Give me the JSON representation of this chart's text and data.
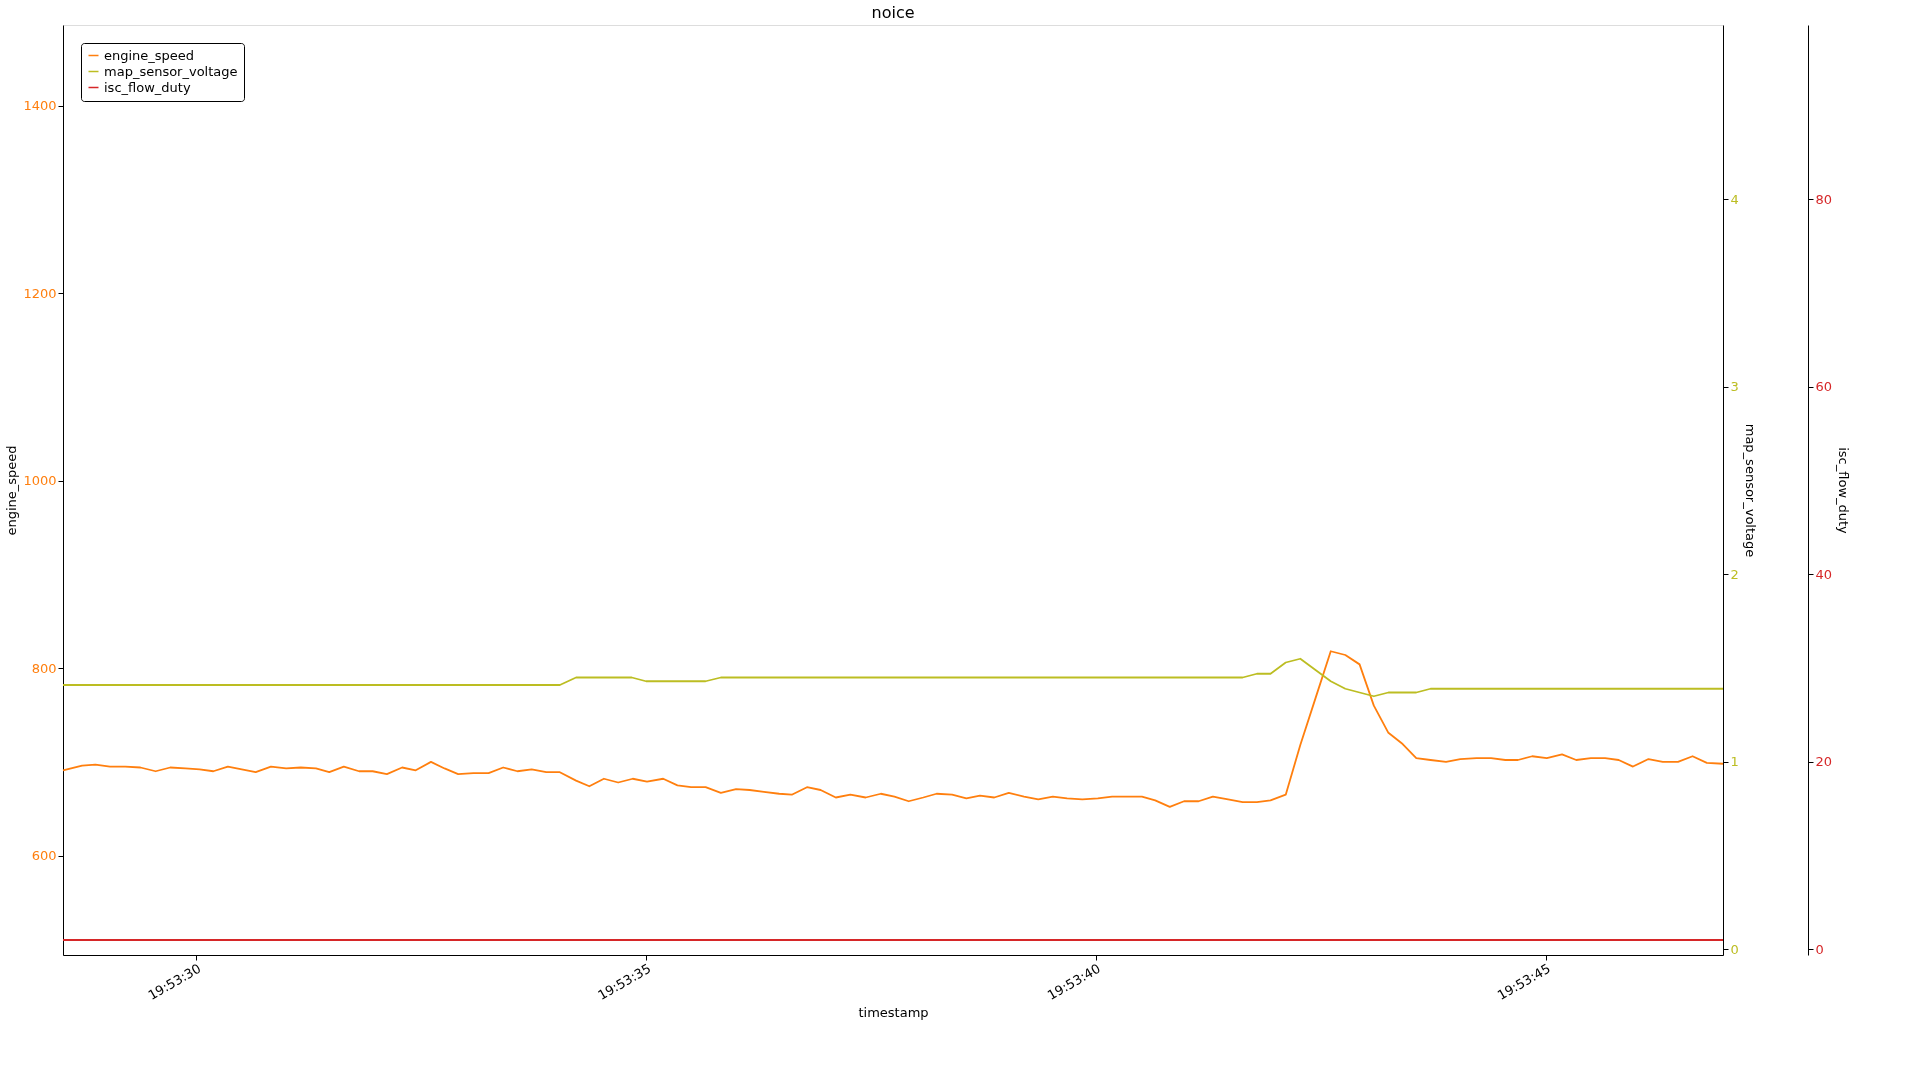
{
  "chart_data": {
    "type": "line",
    "title": "noice",
    "xlabel": "timestamp",
    "ylabel": "engine_speed",
    "y2label": "map_sensor_voltage",
    "y3label": "isc_flow_duty",
    "xlim": [
      19.891255,
      19.89638
    ],
    "xticks": [
      {
        "value": 19.891667,
        "label": "19:53:30"
      },
      {
        "value": 19.893056,
        "label": "19:53:35"
      },
      {
        "value": 19.894444,
        "label": "19:53:40"
      },
      {
        "value": 19.895833,
        "label": "19:53:45"
      }
    ],
    "ylim": [
      494,
      1486
    ],
    "yticks": [
      600,
      800,
      1000,
      1200,
      1400
    ],
    "y2lim": [
      -0.03,
      4.93
    ],
    "y2ticks": [
      0,
      1,
      2,
      3,
      4
    ],
    "y3lim": [
      -0.6,
      98.6
    ],
    "y3ticks": [
      0,
      20,
      40,
      60,
      80
    ],
    "legend": "top left",
    "grid": false,
    "line_style": "solid",
    "marker": "none",
    "series": [
      {
        "name": "engine_speed",
        "color": "#ff7f0e",
        "x": [
          19.891255,
          19.891314,
          19.891355,
          19.8914,
          19.891447,
          19.891494,
          19.891541,
          19.891586,
          19.891633,
          19.891677,
          19.891719,
          19.891764,
          19.89185,
          19.891897,
          19.891944,
          19.891989,
          19.892036,
          19.892077,
          19.892122,
          19.892169,
          19.892211,
          19.892255,
          19.892302,
          19.892344,
          19.892391,
          19.892433,
          19.892475,
          19.892522,
          19.892569,
          19.892614,
          19.892658,
          19.892702,
          19.892747,
          19.892789,
          19.892839,
          19.89288,
          19.892925,
          19.892969,
          19.893014,
          19.893058,
          19.893108,
          19.893152,
          19.893194,
          19.893239,
          19.893286,
          19.893333,
          19.893375,
          19.893419,
          19.893466,
          19.893505,
          19.893552,
          19.893594,
          19.893641,
          19.893686,
          19.893733,
          19.89378,
          19.893822,
          19.893866,
          19.893911,
          19.893952,
          19.894,
          19.894044,
          19.894086,
          19.89413,
          19.894175,
          19.894222,
          19.894266,
          19.894311,
          19.894355,
          19.894402,
          19.89445,
          19.894494,
          19.894539,
          19.894586,
          19.894627,
          19.894672,
          19.894716,
          19.894761,
          19.894805,
          19.894852,
          19.894897,
          19.894941,
          19.894983,
          19.89503,
          19.895075,
          19.895122,
          19.895169,
          19.895214,
          19.895258,
          19.895302,
          19.895347,
          19.895391,
          19.895433,
          19.895477,
          19.895525,
          19.895569,
          19.895619,
          19.895664,
          19.895708,
          19.895747,
          19.895791,
          19.895836,
          19.895883,
          19.895927,
          19.895972,
          19.896016,
          19.896058,
          19.896102,
          19.89615,
          19.896194,
          19.896241,
          19.896286,
          19.89633,
          19.89638
        ],
        "values": [
          691,
          696,
          697,
          695,
          695,
          694,
          690,
          694,
          693,
          692,
          690,
          695,
          689,
          695,
          693,
          694,
          693,
          689,
          695,
          690,
          690,
          687,
          694,
          691,
          700,
          693,
          687,
          688,
          688,
          694,
          690,
          692,
          689,
          689,
          680,
          674,
          682,
          678,
          682,
          679,
          682,
          675,
          673,
          673,
          667,
          671,
          670,
          668,
          666,
          665,
          673,
          670,
          662,
          665,
          662,
          666,
          663,
          658,
          662,
          666,
          665,
          661,
          664,
          662,
          667,
          663,
          660,
          663,
          661,
          660,
          661,
          663,
          663,
          663,
          659,
          652,
          658,
          658,
          663,
          660,
          657,
          657,
          659,
          665,
          718,
          768,
          818,
          814,
          804,
          760,
          731,
          719,
          704,
          702,
          700,
          703,
          704,
          704,
          702,
          702,
          706,
          704,
          708,
          702,
          704,
          704,
          702,
          695,
          703,
          700,
          700,
          706,
          699,
          698
        ]
      },
      {
        "name": "map_sensor_voltage",
        "color": "#bcbd22",
        "axis": "y2",
        "x": [
          19.891255,
          19.892789,
          19.892839,
          19.893011,
          19.893055,
          19.893239,
          19.893286,
          19.894897,
          19.894941,
          19.894983,
          19.89503,
          19.895075,
          19.895122,
          19.895169,
          19.895214,
          19.895258,
          19.895302,
          19.895347,
          19.895433,
          19.895477,
          19.89638
        ],
        "values": [
          1.41,
          1.41,
          1.45,
          1.45,
          1.43,
          1.43,
          1.45,
          1.45,
          1.47,
          1.47,
          1.53,
          1.55,
          1.49,
          1.43,
          1.39,
          1.37,
          1.35,
          1.37,
          1.37,
          1.39,
          1.39
        ]
      },
      {
        "name": "isc_flow_duty",
        "color": "#d62728",
        "axis": "y3",
        "x": [
          19.891255,
          19.89638
        ],
        "values": [
          1,
          1
        ]
      }
    ]
  }
}
